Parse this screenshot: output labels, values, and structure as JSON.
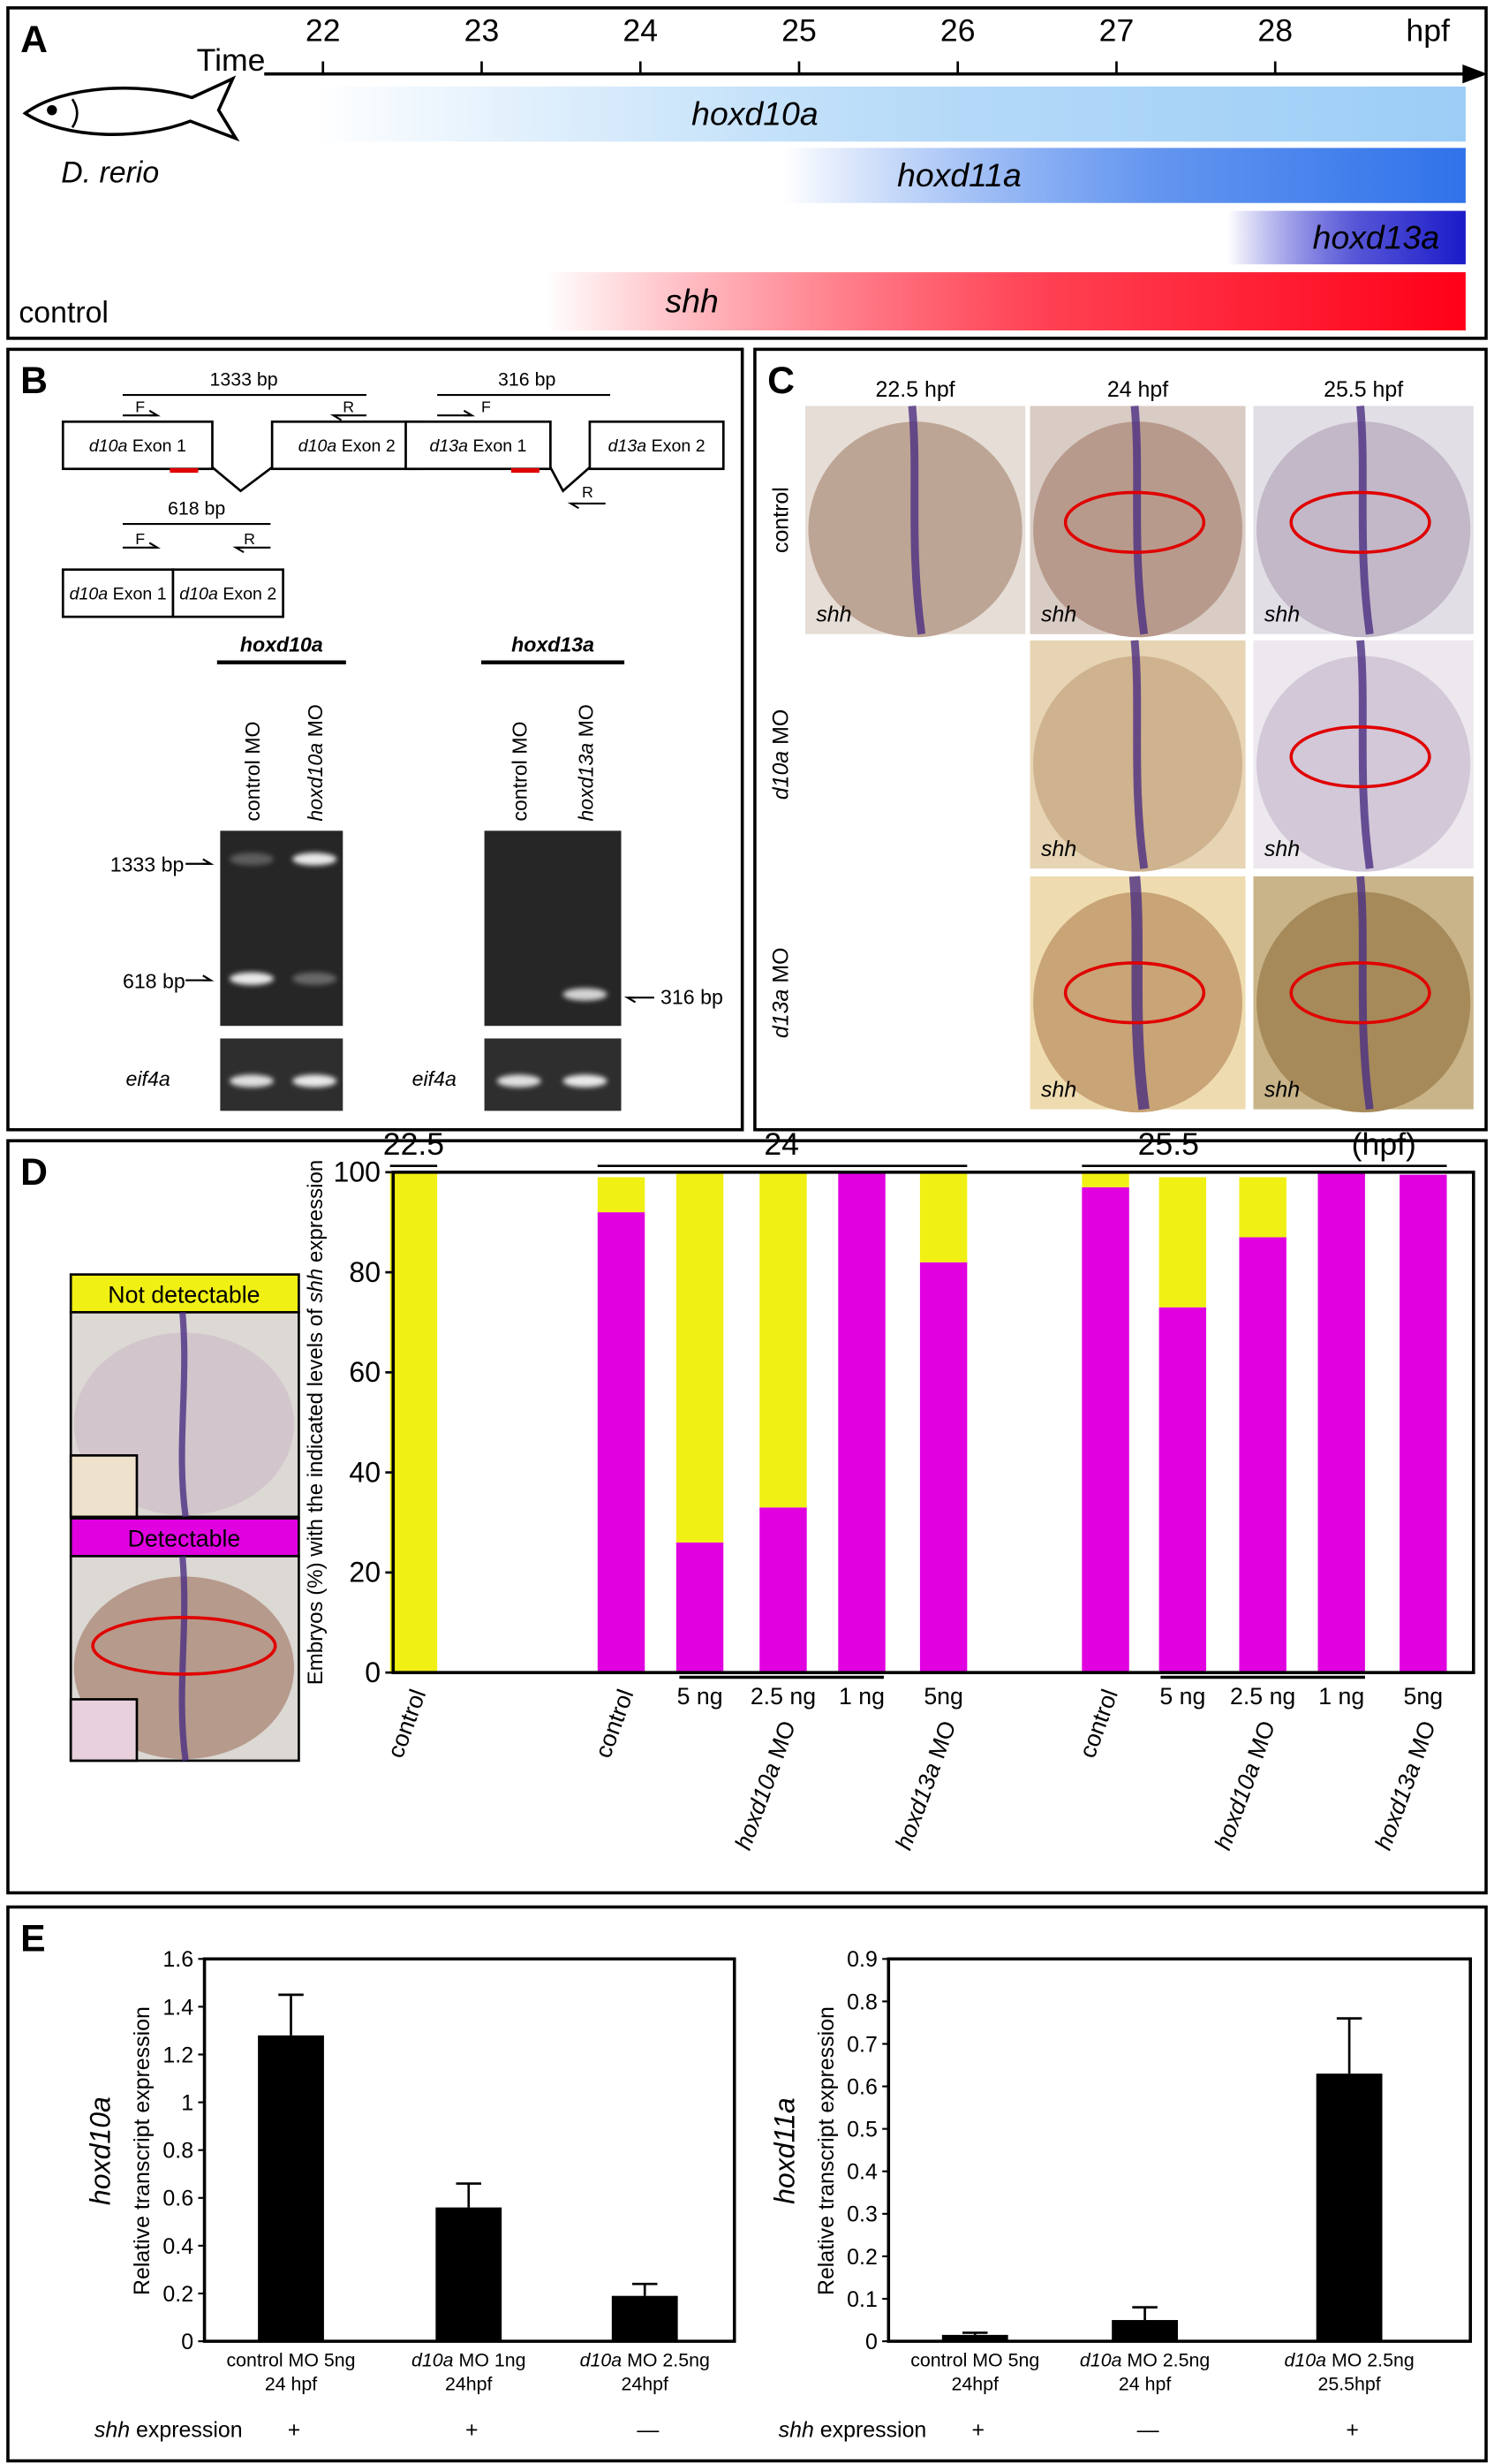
{
  "panel_labels": [
    "A",
    "B",
    "C",
    "D",
    "E"
  ],
  "panel_a": {
    "axis_label": "Time",
    "unit": "hpf",
    "species": "D. rerio",
    "row_label": "control",
    "xlim": [
      21.63,
      29.2
    ],
    "xticks": [
      22,
      23,
      24,
      25,
      26,
      27,
      28
    ],
    "bars": [
      {
        "name": "hoxd10a",
        "start": 21.95,
        "color": "#9ccdf6"
      },
      {
        "name": "hoxd11a",
        "start": 24.9,
        "color": "#2f72ea"
      },
      {
        "name": "hoxd13a",
        "start": 27.7,
        "color": "#1b1bc9"
      },
      {
        "name": "shh",
        "start": 23.4,
        "color": "#ff0018"
      }
    ]
  },
  "panel_b": {
    "primers": [
      "F",
      "R"
    ],
    "d10a_unspliced": {
      "size": "1333 bp",
      "exons": [
        {
          "gene": "d10a",
          "label": "Exon 1"
        },
        {
          "gene": "d10a",
          "label": "Exon 2"
        }
      ]
    },
    "d13a_unspliced": {
      "size": "316 bp",
      "exons": [
        {
          "gene": "d13a",
          "label": "Exon 1"
        },
        {
          "gene": "d13a",
          "label": "Exon 2"
        }
      ]
    },
    "d10a_spliced": {
      "size": "618 bp",
      "exons": [
        {
          "gene": "d10a",
          "label": "Exon 1"
        },
        {
          "gene": "d10a",
          "label": "Exon 2"
        }
      ]
    },
    "gels": [
      {
        "gene": "hoxd10a",
        "lanes": [
          {
            "label": "control MO"
          },
          {
            "gene": "hoxd10a",
            "label": "MO"
          }
        ],
        "bands": [
          "1333 bp",
          "618 bp"
        ],
        "loading": "eif4a"
      },
      {
        "gene": "hoxd13a",
        "lanes": [
          {
            "label": "control MO"
          },
          {
            "gene": "hoxd13a",
            "label": "MO"
          }
        ],
        "bands": [
          "316 bp"
        ],
        "loading": "eif4a"
      }
    ]
  },
  "panel_c": {
    "columns": [
      "22.5 hpf",
      "24 hpf",
      "25.5 hpf"
    ],
    "rows": [
      {
        "label": "control"
      },
      {
        "gene": "d10a",
        "label": "MO"
      },
      {
        "gene": "d13a",
        "label": "MO"
      }
    ],
    "probe": "shh"
  },
  "chart_data": [
    {
      "type": "bar",
      "stacked": true,
      "legend_title_images": [
        "Not detectable",
        "Detectable"
      ],
      "ylabel": {
        "pre": "Embryos (%) with the indicated levels of",
        "gene": "shh",
        "post": "expression"
      },
      "time_groups": [
        "22.5",
        "24",
        "25.5"
      ],
      "unit": "(hpf)",
      "categories": [
        "control",
        "control",
        "5 ng",
        "2.5 ng",
        "1 ng",
        "5ng",
        "control",
        "5 ng",
        "2.5 ng",
        "1 ng",
        "5ng"
      ],
      "mo_groups": [
        {
          "gene": "hoxd10a",
          "label": "MO"
        },
        {
          "gene": "hoxd13a",
          "label": "MO"
        }
      ],
      "ylim": [
        0,
        100
      ],
      "yticks": [
        0,
        20,
        40,
        60,
        80,
        100
      ],
      "series": [
        {
          "name": "Detectable",
          "color": "#e000e0",
          "values": [
            0,
            92,
            26,
            33,
            100,
            82,
            97,
            73,
            87,
            100,
            99.5
          ]
        },
        {
          "name": "Not detectable",
          "color": "#f0f014",
          "values": [
            100,
            7,
            74,
            67,
            0,
            18,
            3,
            26,
            12,
            0,
            0
          ]
        }
      ]
    },
    {
      "type": "bar",
      "gene": "hoxd10a",
      "ylabel": "Relative transcript expression",
      "categories": [
        {
          "label": "control MO 5ng",
          "time": "24 hpf"
        },
        {
          "gene": "d10a",
          "label": "MO 1ng",
          "time": "24hpf"
        },
        {
          "gene": "d10a",
          "label": "MO 2.5ng",
          "time": "24hpf"
        }
      ],
      "values": [
        1.28,
        0.56,
        0.19
      ],
      "errors": [
        0.17,
        0.1,
        0.05
      ],
      "color": "#000000",
      "ylim": [
        0,
        1.6
      ],
      "yticks": [
        0,
        0.2,
        0.4,
        0.6,
        0.8,
        1,
        1.2,
        1.4,
        1.6
      ],
      "row_label": {
        "gene": "shh",
        "label": "expression"
      },
      "row_values": [
        "+",
        "+",
        "—"
      ]
    },
    {
      "type": "bar",
      "gene": "hoxd11a",
      "ylabel": "Relative transcript expression",
      "categories": [
        {
          "label": "control MO 5ng",
          "time": "24hpf"
        },
        {
          "gene": "d10a",
          "label": "MO 2.5ng",
          "time": "24 hpf"
        },
        {
          "gene": "d10a",
          "label": "MO 2.5ng",
          "time": "25.5hpf"
        }
      ],
      "values": [
        0.015,
        0.05,
        0.63
      ],
      "errors": [
        0.005,
        0.03,
        0.13
      ],
      "color": "#000000",
      "ylim": [
        0,
        0.9
      ],
      "yticks": [
        0,
        0.1,
        0.2,
        0.3,
        0.4,
        0.5,
        0.6,
        0.7,
        0.8,
        0.9
      ],
      "row_label": {
        "gene": "shh",
        "label": "expression"
      },
      "row_values": [
        "+",
        "—",
        "+"
      ]
    }
  ]
}
